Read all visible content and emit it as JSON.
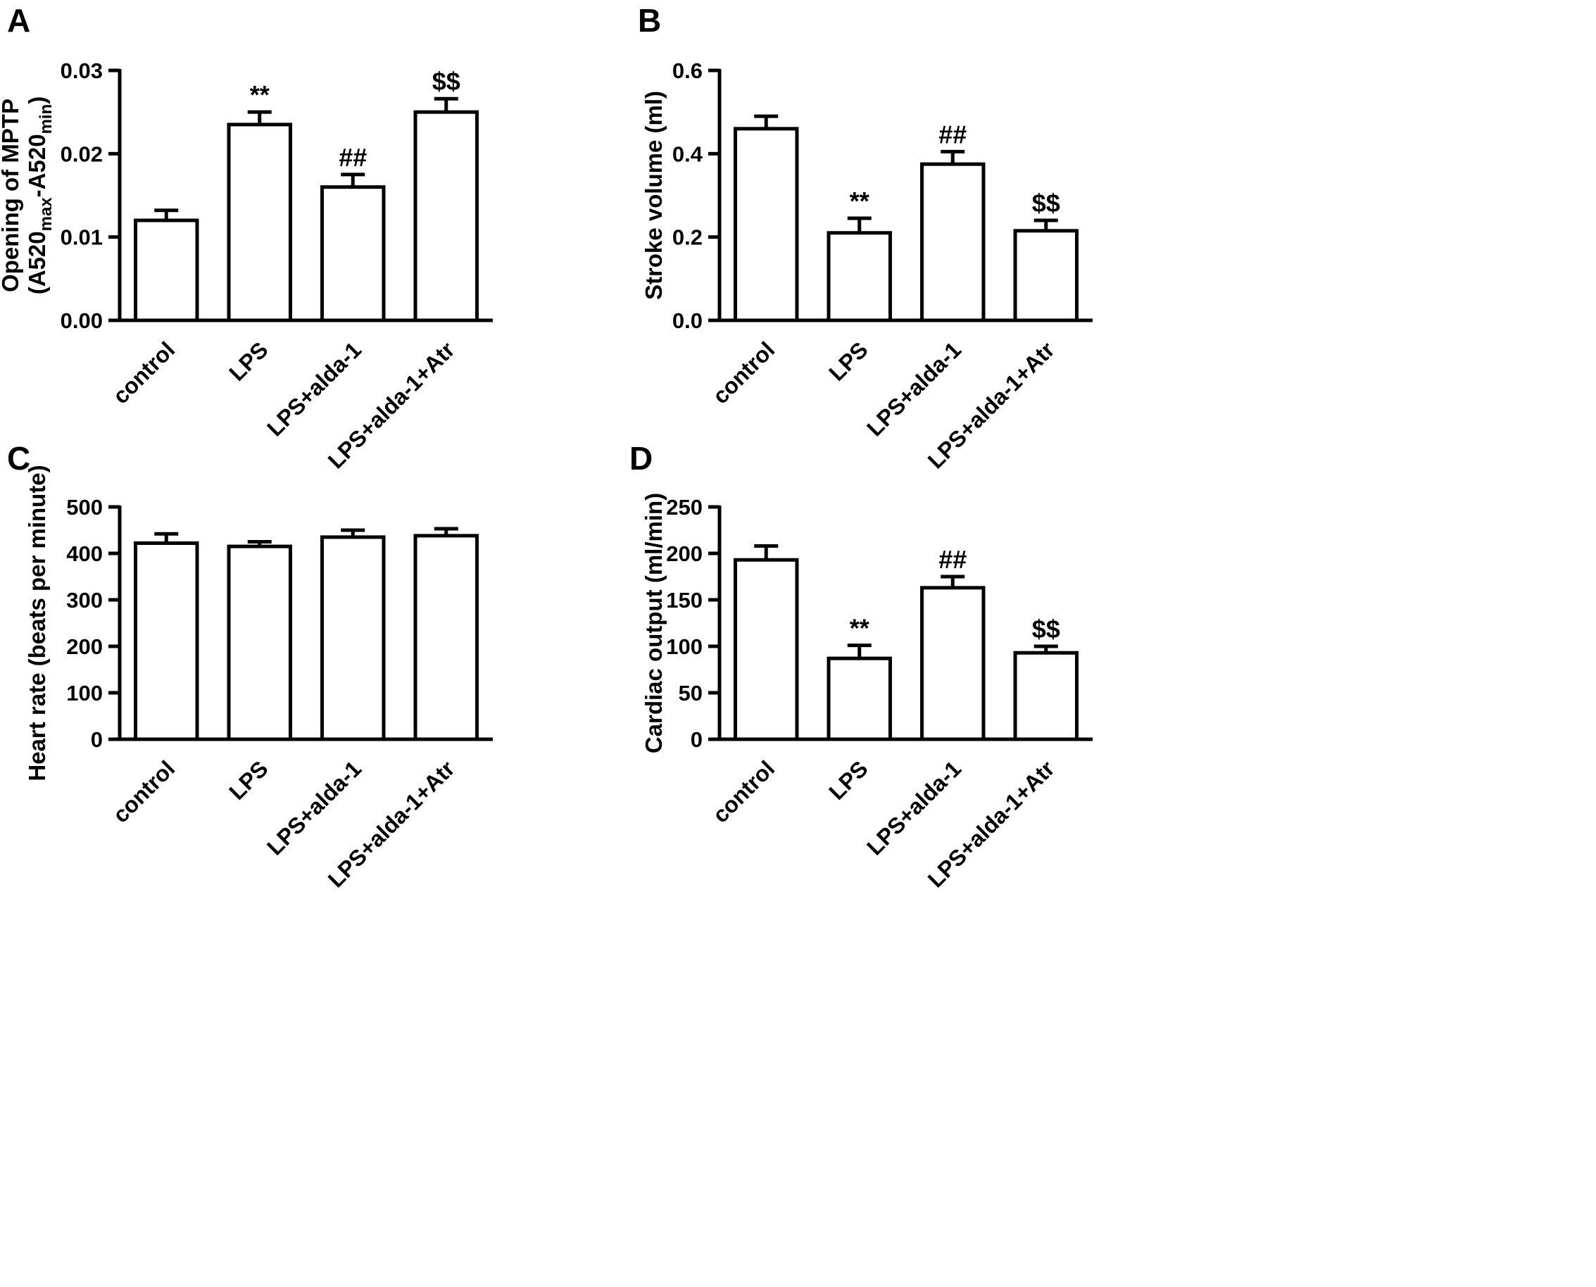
{
  "figure": {
    "background": "#ffffff",
    "bar_fill": "#ffffff",
    "line_color": "#000000",
    "text_color": "#000000"
  },
  "chart_data": [
    {
      "type": "bar",
      "panel_label": "A",
      "ylabel_lines": [
        [
          {
            "t": "Opening of MPTP"
          }
        ],
        [
          {
            "t": "(A520"
          },
          {
            "t": "max",
            "sub": true
          },
          {
            "t": "-A520"
          },
          {
            "t": "min",
            "sub": true
          },
          {
            "t": ")"
          }
        ]
      ],
      "categories": [
        "control",
        "LPS",
        "LPS+alda-1",
        "LPS+alda-1+Atr"
      ],
      "values": [
        0.012,
        0.0235,
        0.016,
        0.025
      ],
      "errors": [
        0.0012,
        0.0015,
        0.0015,
        0.0016
      ],
      "annotations": [
        "",
        "**",
        "##",
        "$$"
      ],
      "ylim": [
        0,
        0.03
      ],
      "yticks": [
        0,
        0.01,
        0.02,
        0.03
      ],
      "ytick_labels": [
        "0.00",
        "0.01",
        "0.02",
        "0.03"
      ],
      "legend": "none",
      "grid": false
    },
    {
      "type": "bar",
      "panel_label": "B",
      "ylabel_lines": [
        [
          {
            "t": "Stroke volume (ml)"
          }
        ]
      ],
      "categories": [
        "control",
        "LPS",
        "LPS+alda-1",
        "LPS+alda-1+Atr"
      ],
      "values": [
        0.46,
        0.21,
        0.375,
        0.215
      ],
      "errors": [
        0.03,
        0.035,
        0.03,
        0.025
      ],
      "annotations": [
        "",
        "**",
        "##",
        "$$"
      ],
      "ylim": [
        0,
        0.6
      ],
      "yticks": [
        0,
        0.2,
        0.4,
        0.6
      ],
      "ytick_labels": [
        "0.0",
        "0.2",
        "0.4",
        "0.6"
      ],
      "legend": "none",
      "grid": false
    },
    {
      "type": "bar",
      "panel_label": "C",
      "ylabel_lines": [
        [
          {
            "t": "Heart rate (beats per minute)"
          }
        ]
      ],
      "categories": [
        "control",
        "LPS",
        "LPS+alda-1",
        "LPS+alda-1+Atr"
      ],
      "values": [
        422,
        415,
        435,
        438
      ],
      "errors": [
        20,
        10,
        15,
        15
      ],
      "annotations": [
        "",
        "",
        "",
        ""
      ],
      "ylim": [
        0,
        500
      ],
      "yticks": [
        0,
        100,
        200,
        300,
        400,
        500
      ],
      "ytick_labels": [
        "0",
        "100",
        "200",
        "300",
        "400",
        "500"
      ],
      "legend": "none",
      "grid": false
    },
    {
      "type": "bar",
      "panel_label": "D",
      "ylabel_lines": [
        [
          {
            "t": "Cardiac output (ml/min)"
          }
        ]
      ],
      "categories": [
        "control",
        "LPS",
        "LPS+alda-1",
        "LPS+alda-1+Atr"
      ],
      "values": [
        193,
        87,
        163,
        93
      ],
      "errors": [
        15,
        14,
        12,
        7
      ],
      "annotations": [
        "",
        "**",
        "##",
        "$$"
      ],
      "ylim": [
        0,
        250
      ],
      "yticks": [
        0,
        50,
        100,
        150,
        200,
        250
      ],
      "ytick_labels": [
        "0",
        "50",
        "100",
        "150",
        "200",
        "250"
      ],
      "legend": "none",
      "grid": false
    }
  ]
}
